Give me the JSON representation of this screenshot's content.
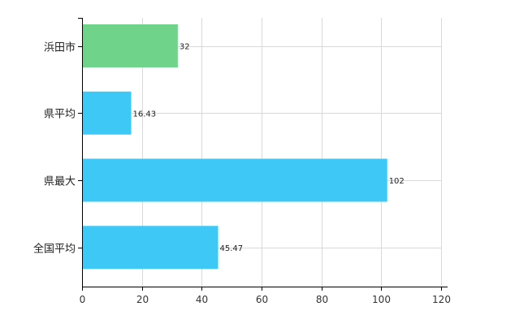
{
  "chart_data": {
    "type": "bar",
    "orientation": "horizontal",
    "categories": [
      "浜田市",
      "県平均",
      "県最大",
      "全国平均"
    ],
    "values": [
      32,
      16.43,
      102,
      45.47
    ],
    "value_labels": [
      "32",
      "16.43",
      "102",
      "45.47"
    ],
    "bar_colors": [
      "#6fd38a",
      "#3ec8f5",
      "#3ec8f5",
      "#3ec8f5"
    ],
    "xlim": [
      0,
      120
    ],
    "xticks": [
      0,
      20,
      40,
      60,
      80,
      100,
      120
    ],
    "xtick_labels": [
      "0",
      "20",
      "40",
      "60",
      "80",
      "100",
      "120"
    ],
    "grid": true,
    "legend": "none"
  },
  "colors": {
    "highlight": "#6fd38a",
    "default": "#3ec8f5",
    "grid": "#d9d9d9",
    "axis": "#000000"
  }
}
